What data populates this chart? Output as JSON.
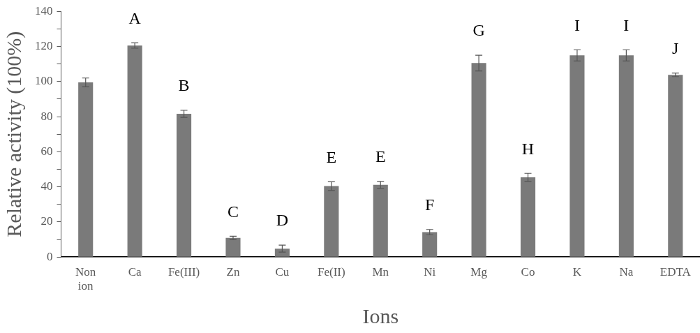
{
  "chart_data": {
    "type": "bar",
    "xlabel": "Ions",
    "ylabel": "Relative activity (100%)",
    "categories": [
      "Non ion",
      "Ca",
      "Fe(III)",
      "Zn",
      "Cu",
      "Fe(II)",
      "Mn",
      "Ni",
      "Mg",
      "Co",
      "K",
      "Na",
      "EDTA"
    ],
    "values": [
      99.5,
      120.5,
      81.6,
      10.9,
      4.8,
      40.4,
      41.1,
      14.2,
      110.5,
      45.4,
      114.9,
      114.9,
      103.8
    ],
    "errors": [
      2.5,
      1.5,
      2,
      1,
      2,
      2.5,
      2,
      1.5,
      4.5,
      2.3,
      3.2,
      3.2,
      1
    ],
    "color": "#7a7a7a",
    "ylim": [
      0,
      140
    ],
    "yticks": [
      0,
      {
        "value": 10,
        "label": null
      },
      20,
      {
        "value": 30,
        "label": null
      },
      40,
      {
        "value": 50,
        "label": null
      },
      60,
      {
        "value": 70,
        "label": null
      },
      80,
      {
        "value": 90,
        "label": null
      },
      100,
      {
        "value": 110,
        "label": null
      },
      120,
      {
        "value": 130,
        "label": null
      },
      140
    ],
    "grid": false,
    "legend": false,
    "value_labels": [
      null,
      "A",
      "B",
      "C",
      "D",
      "E",
      "E",
      "F",
      "G",
      "H",
      "I",
      "I",
      "J"
    ]
  }
}
